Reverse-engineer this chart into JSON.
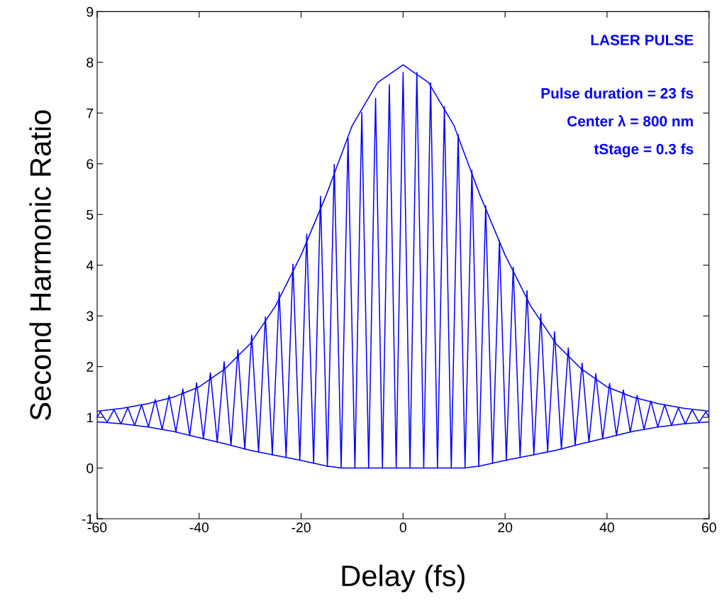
{
  "chart_data": {
    "type": "line",
    "xlabel": "Delay (fs)",
    "ylabel": "Second Harmonic Ratio",
    "annotations": [
      "LASER PULSE",
      "Pulse duration = 23 fs",
      "Center λ = 800 nm",
      "tStage = 0.3 fs"
    ],
    "xlim": [
      -60,
      60
    ],
    "ylim": [
      -1,
      9
    ],
    "xticks": [
      -60,
      -40,
      -20,
      0,
      20,
      40,
      60
    ],
    "yticks": [
      -1,
      0,
      1,
      2,
      3,
      4,
      5,
      6,
      7,
      8,
      9
    ],
    "grid": false,
    "legend": false,
    "marker": "none",
    "line_style": "solid",
    "series": [
      {
        "color": "#0000ff",
        "x": [
          -60,
          -59.4,
          -58.05,
          -56.7,
          -55.35,
          -54,
          -52.65,
          -51.3,
          -49.95,
          -48.6,
          -47.25,
          -45.9,
          -44.55,
          -43.2,
          -41.85,
          -40.5,
          -39.15,
          -37.8,
          -36.45,
          -35.1,
          -33.75,
          -32.4,
          -31.05,
          -29.7,
          -28.35,
          -27,
          -25.65,
          -24.3,
          -22.95,
          -21.6,
          -20.25,
          -18.9,
          -17.55,
          -16.2,
          -14.85,
          -13.5,
          -12.15,
          -10.8,
          -9.45,
          -8.1,
          -6.75,
          -5.4,
          -4.05,
          -2.7,
          -1.35,
          0,
          1.35,
          2.7,
          4.05,
          5.4,
          6.75,
          8.1,
          9.45,
          10.8,
          12.15,
          13.5,
          14.85,
          16.2,
          17.55,
          18.9,
          20.25,
          21.6,
          22.95,
          24.3,
          25.65,
          27,
          28.35,
          29.7,
          31.05,
          32.4,
          33.75,
          35.1,
          36.45,
          37.8,
          39.15,
          40.5,
          41.85,
          43.2,
          44.55,
          45.9,
          47.25,
          48.6,
          49.95,
          51.3,
          52.65,
          54,
          55.35,
          56.7,
          58.05,
          59.4,
          60
        ],
        "values": [
          1.0,
          1.11,
          0.9,
          1.15,
          0.87,
          1.19,
          0.84,
          1.25,
          0.81,
          1.35,
          0.76,
          1.43,
          0.71,
          1.56,
          0.64,
          1.68,
          0.58,
          1.88,
          0.51,
          2.1,
          0.45,
          2.33,
          0.37,
          2.62,
          0.32,
          2.98,
          0.26,
          3.47,
          0.21,
          4.02,
          0.15,
          4.61,
          0.09,
          5.36,
          0.03,
          5.99,
          0,
          6.5,
          0,
          7.01,
          0,
          7.29,
          0,
          7.56,
          0,
          7.8,
          0,
          7.8,
          0,
          7.6,
          0,
          7.13,
          0,
          6.58,
          0,
          5.87,
          0.03,
          5.17,
          0.09,
          4.48,
          0.15,
          3.96,
          0.21,
          3.5,
          0.26,
          3.04,
          0.32,
          2.69,
          0.37,
          2.37,
          0.45,
          2.07,
          0.51,
          1.86,
          0.58,
          1.67,
          0.64,
          1.54,
          0.71,
          1.43,
          0.76,
          1.32,
          0.81,
          1.25,
          0.84,
          1.19,
          0.87,
          1.15,
          0.9,
          1.11,
          1.0
        ]
      },
      {
        "color": "#0000ff",
        "x": [
          -60,
          -55,
          -50,
          -45,
          -40,
          -35,
          -30,
          -25,
          -20,
          -15,
          -10,
          -5,
          0,
          5,
          10,
          15,
          20,
          25,
          30,
          35,
          40,
          45,
          50,
          55,
          60
        ],
        "values": [
          1.12,
          1.18,
          1.27,
          1.4,
          1.6,
          1.95,
          2.45,
          3.2,
          4.2,
          5.4,
          6.75,
          7.6,
          7.95,
          7.6,
          6.75,
          5.4,
          4.2,
          3.2,
          2.45,
          1.95,
          1.6,
          1.4,
          1.27,
          1.18,
          1.12
        ]
      },
      {
        "color": "#0000ff",
        "x": [
          -60,
          -55,
          -50,
          -45,
          -40,
          -35,
          -30,
          -25,
          -20,
          -15,
          -12,
          0,
          12,
          15,
          20,
          25,
          30,
          35,
          40,
          45,
          50,
          55,
          60
        ],
        "values": [
          0.91,
          0.87,
          0.81,
          0.72,
          0.6,
          0.48,
          0.35,
          0.25,
          0.15,
          0.04,
          0,
          0,
          0,
          0.04,
          0.15,
          0.25,
          0.35,
          0.48,
          0.6,
          0.72,
          0.81,
          0.87,
          0.91
        ]
      }
    ]
  }
}
